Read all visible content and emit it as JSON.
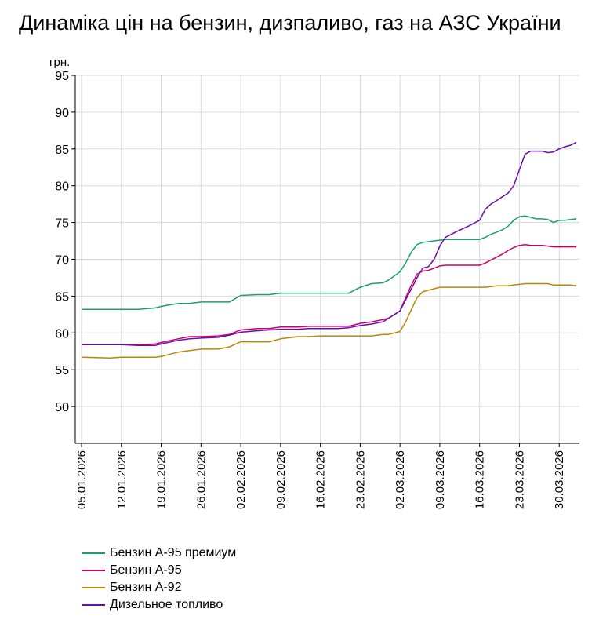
{
  "chart_data": {
    "type": "line",
    "title": "Динаміка цін на бензин, дизпаливо, газ на АЗС України",
    "ylabel": "грн.",
    "xlabel": "",
    "ylim": [
      45,
      95
    ],
    "yticks": [
      50,
      55,
      60,
      65,
      70,
      75,
      80,
      85,
      90,
      95
    ],
    "grid": true,
    "legend_position": "bottom-left",
    "x_tick_labels": [
      "05.01.2026",
      "12.01.2026",
      "19.01.2026",
      "26.01.2026",
      "02.02.2026",
      "09.02.2026",
      "16.02.2026",
      "23.02.2026",
      "02.03.2026",
      "09.03.2026",
      "16.03.2026",
      "23.03.2026",
      "30.03.2026"
    ],
    "x": [
      "2026-01-05",
      "2026-01-10",
      "2026-01-12",
      "2026-01-15",
      "2026-01-18",
      "2026-01-19",
      "2026-01-22",
      "2026-01-24",
      "2026-01-26",
      "2026-01-29",
      "2026-01-31",
      "2026-02-02",
      "2026-02-05",
      "2026-02-07",
      "2026-02-09",
      "2026-02-12",
      "2026-02-14",
      "2026-02-16",
      "2026-02-19",
      "2026-02-21",
      "2026-02-23",
      "2026-02-25",
      "2026-02-27",
      "2026-02-28",
      "2026-03-02",
      "2026-03-03",
      "2026-03-04",
      "2026-03-05",
      "2026-03-06",
      "2026-03-07",
      "2026-03-08",
      "2026-03-09",
      "2026-03-10",
      "2026-03-12",
      "2026-03-14",
      "2026-03-16",
      "2026-03-17",
      "2026-03-18",
      "2026-03-19",
      "2026-03-20",
      "2026-03-21",
      "2026-03-22",
      "2026-03-23",
      "2026-03-24",
      "2026-03-25",
      "2026-03-26",
      "2026-03-27",
      "2026-03-28",
      "2026-03-29",
      "2026-03-30",
      "2026-03-31",
      "2026-04-01",
      "2026-04-02"
    ],
    "series": [
      {
        "name": "Бензин А-95 премиум",
        "color": "#1a9e77",
        "values": [
          63.2,
          63.2,
          63.2,
          63.2,
          63.4,
          63.6,
          64.0,
          64.0,
          64.2,
          64.2,
          64.2,
          65.1,
          65.2,
          65.2,
          65.4,
          65.4,
          65.4,
          65.4,
          65.4,
          65.4,
          66.2,
          66.7,
          66.8,
          67.2,
          68.3,
          69.5,
          71.0,
          72.0,
          72.3,
          72.4,
          72.5,
          72.6,
          72.7,
          72.7,
          72.7,
          72.7,
          73.0,
          73.4,
          73.7,
          74.0,
          74.5,
          75.3,
          75.8,
          75.9,
          75.7,
          75.5,
          75.5,
          75.4,
          75.0,
          75.3,
          75.3,
          75.4,
          75.5
        ]
      },
      {
        "name": "Бензин А-95",
        "color": "#cc0066",
        "values": [
          58.4,
          58.4,
          58.4,
          58.4,
          58.5,
          58.7,
          59.2,
          59.5,
          59.5,
          59.6,
          59.8,
          60.4,
          60.6,
          60.6,
          60.8,
          60.8,
          60.9,
          60.9,
          60.9,
          60.9,
          61.3,
          61.5,
          61.8,
          62.0,
          63.0,
          64.8,
          66.5,
          68.0,
          68.4,
          68.5,
          68.8,
          69.1,
          69.2,
          69.2,
          69.2,
          69.2,
          69.5,
          69.9,
          70.3,
          70.7,
          71.2,
          71.6,
          71.9,
          72.0,
          71.9,
          71.9,
          71.9,
          71.8,
          71.7,
          71.7,
          71.7,
          71.7,
          71.7
        ]
      },
      {
        "name": "Бензин А-92",
        "color": "#b8860b",
        "values": [
          56.7,
          56.6,
          56.7,
          56.7,
          56.7,
          56.8,
          57.4,
          57.6,
          57.8,
          57.8,
          58.1,
          58.8,
          58.8,
          58.8,
          59.2,
          59.5,
          59.5,
          59.6,
          59.6,
          59.6,
          59.6,
          59.6,
          59.8,
          59.8,
          60.2,
          61.5,
          63.2,
          64.8,
          65.6,
          65.8,
          66.0,
          66.2,
          66.2,
          66.2,
          66.2,
          66.2,
          66.2,
          66.3,
          66.4,
          66.4,
          66.4,
          66.5,
          66.6,
          66.7,
          66.7,
          66.7,
          66.7,
          66.7,
          66.5,
          66.5,
          66.5,
          66.5,
          66.4
        ]
      },
      {
        "name": "Дизельное топливо",
        "color": "#6a0dad",
        "values": [
          58.4,
          58.4,
          58.4,
          58.3,
          58.3,
          58.5,
          59.0,
          59.2,
          59.3,
          59.4,
          59.7,
          60.1,
          60.3,
          60.4,
          60.5,
          60.5,
          60.6,
          60.6,
          60.6,
          60.7,
          61.0,
          61.2,
          61.5,
          62.0,
          63.0,
          64.5,
          66.0,
          67.5,
          68.8,
          69.0,
          70.0,
          71.8,
          73.0,
          73.8,
          74.5,
          75.3,
          76.8,
          77.5,
          78.0,
          78.5,
          79.0,
          80.0,
          82.2,
          84.3,
          84.7,
          84.7,
          84.7,
          84.5,
          84.6,
          85.0,
          85.3,
          85.5,
          85.9
        ]
      }
    ]
  }
}
